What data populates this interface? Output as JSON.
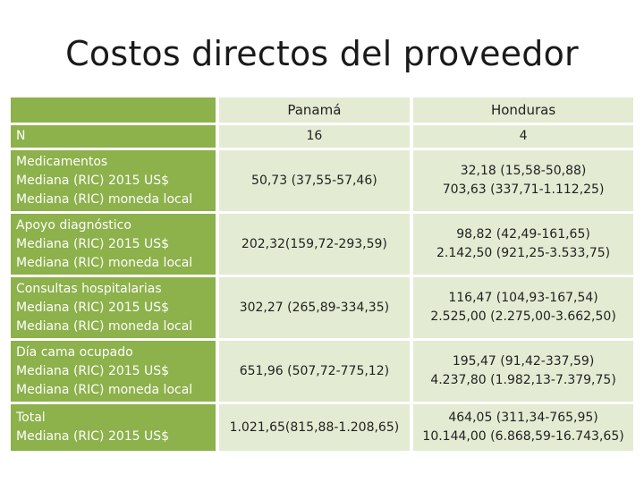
{
  "title": "Costos directos del proveedor",
  "columns": [
    "Panamá",
    "Honduras"
  ],
  "rows": [
    {
      "label_lines": [
        "N"
      ],
      "values": [
        [
          "16"
        ],
        [
          "4"
        ]
      ]
    },
    {
      "label_lines": [
        "Medicamentos",
        "Mediana (RIC) 2015 US$",
        "Mediana (RIC) moneda local"
      ],
      "values": [
        [
          "50,73 (37,55-57,46)"
        ],
        [
          "32,18 (15,58-50,88)",
          "703,63 (337,71-1.112,25)"
        ]
      ]
    },
    {
      "label_lines": [
        "Apoyo diagnóstico",
        "Mediana (RIC) 2015 US$",
        "Mediana (RIC) moneda local"
      ],
      "values": [
        [
          "202,32(159,72-293,59)"
        ],
        [
          "98,82 (42,49-161,65)",
          "2.142,50 (921,25-3.533,75)"
        ]
      ]
    },
    {
      "label_lines": [
        "Consultas hospitalarias",
        "Mediana (RIC) 2015 US$",
        "Mediana (RIC) moneda local"
      ],
      "values": [
        [
          "302,27 (265,89-334,35)"
        ],
        [
          "116,47 (104,93-167,54)",
          "2.525,00 (2.275,00-3.662,50)"
        ]
      ]
    },
    {
      "label_lines": [
        "Día cama ocupado",
        "Mediana (RIC) 2015 US$",
        "Mediana (RIC) moneda local"
      ],
      "values": [
        [
          "651,96 (507,72-775,12)"
        ],
        [
          "195,47 (91,42-337,59)",
          "4.237,80 (1.982,13-7.379,75)"
        ]
      ]
    },
    {
      "label_lines": [
        "Total",
        "Mediana (RIC) 2015 US$"
      ],
      "values": [
        [
          "1.021,65(815,88-1.208,65)"
        ],
        [
          "464,05 (311,34-765,95)",
          "10.144,00 (6.868,59-16.743,65)"
        ]
      ]
    }
  ],
  "colors": {
    "header_green": "#8db14b",
    "cell_light": "#e3ebd3"
  }
}
